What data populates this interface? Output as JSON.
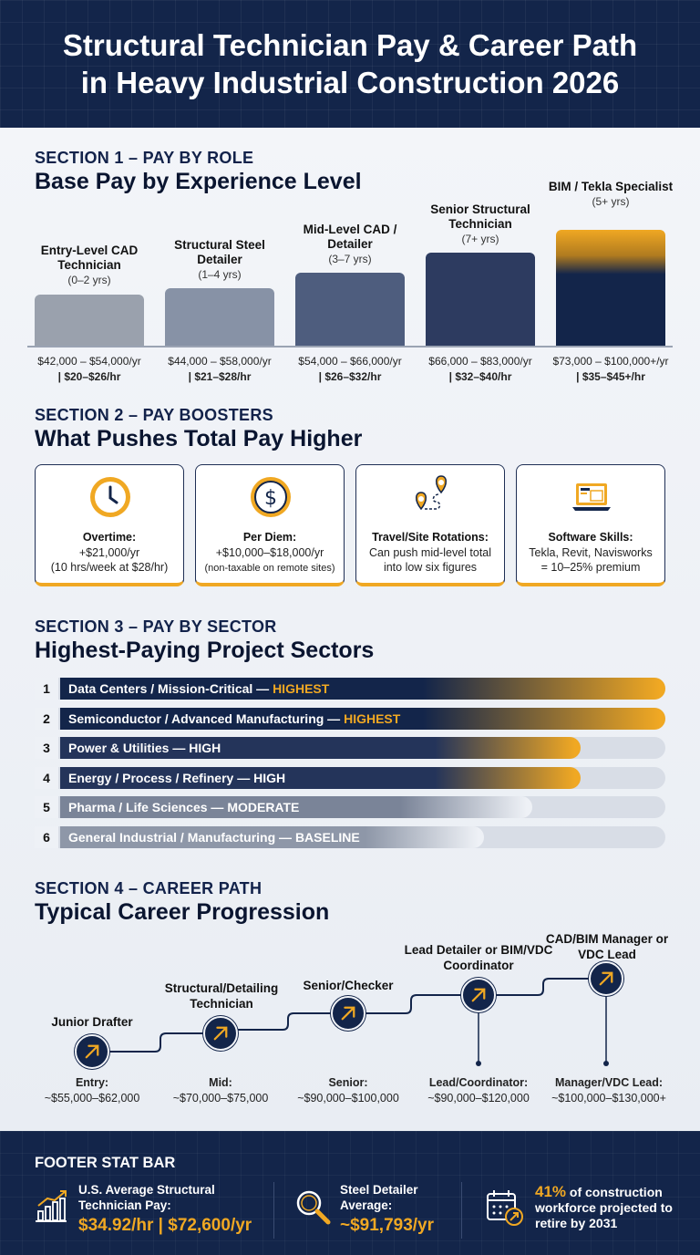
{
  "header": {
    "title_line1": "Structural Technician Pay & Career Path",
    "title_line2": "in Heavy Industrial Construction 2026"
  },
  "section1": {
    "label": "SECTION 1 – PAY BY ROLE",
    "title": "Base Pay by Experience Level",
    "roles": [
      {
        "name": "Entry-Level CAD Technician",
        "years": "(0–2 yrs)",
        "annual": "$42,000 – $54,000/yr",
        "hourly": "| $20–$26/hr"
      },
      {
        "name": "Structural Steel Detailer",
        "years": "(1–4 yrs)",
        "annual": "$44,000 – $58,000/yr",
        "hourly": "| $21–$28/hr"
      },
      {
        "name": "Mid-Level CAD / Detailer",
        "years": "(3–7 yrs)",
        "annual": "$54,000 – $66,000/yr",
        "hourly": "| $26–$32/hr"
      },
      {
        "name": "Senior Structural Technician",
        "years": "(7+ yrs)",
        "annual": "$66,000 – $83,000/yr",
        "hourly": "| $32–$40/hr"
      },
      {
        "name": "BIM / Tekla Specialist",
        "years": "(5+ yrs)",
        "annual": "$73,000 – $100,000+/yr",
        "hourly": "| $35–$45+/hr"
      }
    ]
  },
  "section2": {
    "label": "SECTION 2 – PAY BOOSTERS",
    "title": "What Pushes Total Pay Higher",
    "cards": [
      {
        "icon": "clock-icon",
        "title": "Overtime:",
        "line1": "+$21,000/yr",
        "line2": "(10 hrs/week at $28/hr)"
      },
      {
        "icon": "dollar-coin-icon",
        "title": "Per Diem:",
        "line1": "+$10,000–$18,000/yr",
        "line2": "(non-taxable on remote sites)"
      },
      {
        "icon": "route-pin-icon",
        "title": "Travel/Site Rotations:",
        "line1": "Can push mid-level total",
        "line2": "into low six figures"
      },
      {
        "icon": "laptop-icon",
        "title": "Software Skills:",
        "line1": "Tekla, Revit, Navisworks",
        "line2": "= 10–25% premium"
      }
    ]
  },
  "section3": {
    "label": "SECTION 3 – PAY BY SECTOR",
    "title": "Highest-Paying Project Sectors",
    "sectors": [
      {
        "rank": "1",
        "name": "Data Centers / Mission-Critical",
        "dash": " — ",
        "level": "HIGHEST",
        "fill": 1.0
      },
      {
        "rank": "2",
        "name": "Semiconductor / Advanced Manufacturing",
        "dash": " — ",
        "level": "HIGHEST",
        "fill": 1.0
      },
      {
        "rank": "3",
        "name": "Power & Utilities",
        "dash": " — ",
        "level": "HIGH",
        "fill": 0.86
      },
      {
        "rank": "4",
        "name": "Energy / Process / Refinery",
        "dash": " — ",
        "level": "HIGH",
        "fill": 0.86
      },
      {
        "rank": "5",
        "name": "Pharma / Life Sciences",
        "dash": " — ",
        "level": "MODERATE",
        "fill": 0.78
      },
      {
        "rank": "6",
        "name": "General Industrial / Manufacturing",
        "dash": " — ",
        "level": "BASELINE",
        "fill": 0.7
      }
    ]
  },
  "section4": {
    "label": "SECTION 4 – CAREER PATH",
    "title": "Typical Career Progression",
    "steps": [
      {
        "title": "Junior Drafter",
        "pay_label": "Entry:",
        "pay": "~$55,000–$62,000"
      },
      {
        "title": "Structural/Detailing Technician",
        "pay_label": "Mid:",
        "pay": "~$70,000–$75,000"
      },
      {
        "title": "Senior/Checker",
        "pay_label": "Senior:",
        "pay": "~$90,000–$100,000"
      },
      {
        "title": "Lead Detailer or BIM/VDC Coordinator",
        "pay_label": "Lead/Coordinator:",
        "pay": "~$90,000–$120,000"
      },
      {
        "title": "CAD/BIM Manager or VDC Lead",
        "pay_label": "Manager/VDC Lead:",
        "pay": "~$100,000–$130,000+"
      }
    ]
  },
  "footer": {
    "heading": "FOOTER STAT BAR",
    "stat1_label": "U.S. Average Structural Technician Pay:",
    "stat1_value": "$34.92/hr | $72,600/yr",
    "stat2_label": "Steel Detailer Average:",
    "stat2_value": "~$91,793/yr",
    "stat3_pct": "41%",
    "stat3_text": " of construction workforce projected to retire by 2031"
  },
  "colors": {
    "navy": "#13254a",
    "gold": "#f0a823",
    "bar_light": "#9aa3b3"
  }
}
